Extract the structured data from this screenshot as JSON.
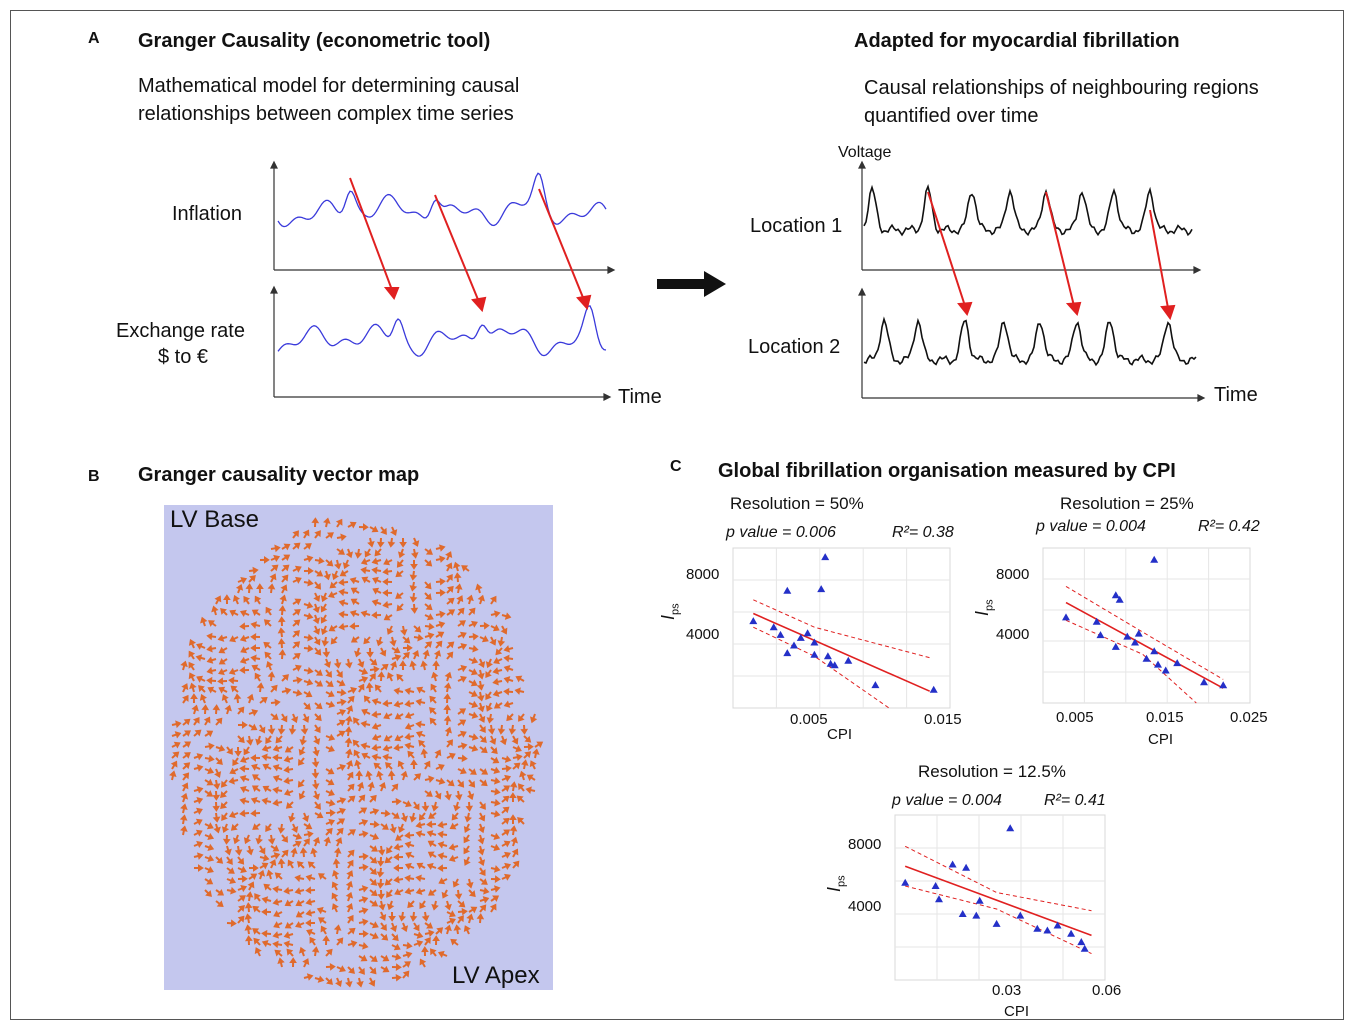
{
  "panel_a": {
    "label": "A",
    "left_title": "Granger Causality (econometric tool)",
    "left_desc": "Mathematical model for determining causal relationships between complex time series",
    "signal_1": "Inflation",
    "signal_2_line1": "Exchange rate",
    "signal_2_line2": "$ to €",
    "x_axis": "Time",
    "right_title": "Adapted for myocardial fibrillation",
    "right_desc": "Causal relationships of neighbouring regions quantified over time",
    "y_axis": "Voltage",
    "location_1": "Location 1",
    "location_2": "Location 2",
    "colors": {
      "econ_signal": "#3a3adb",
      "ecg_signal": "#111111",
      "causal_arrow": "#e02020"
    }
  },
  "panel_b": {
    "label": "B",
    "title": "Granger causality vector map",
    "top_label": "LV Base",
    "bottom_label": "LV Apex",
    "colors": {
      "background": "#c4c7ee",
      "vectors": "#e06a2c"
    }
  },
  "panel_c": {
    "label": "C",
    "title": "Global fibrillation organisation measured by CPI",
    "colors": {
      "points": "#2430c8",
      "fit": "#e02020"
    }
  },
  "chart_data": [
    {
      "type": "scatter",
      "title": "Resolution = 50%",
      "p_value": "p value = 0.006",
      "r2": "R²= 0.38",
      "xlabel": "CPI",
      "ylabel": "I",
      "ylabel_sub": "ps",
      "xticks": [
        "0.005",
        "0.015"
      ],
      "yticks": [
        "8000",
        "4000"
      ],
      "xlim": [
        0,
        0.016
      ],
      "ylim": [
        0,
        10500
      ],
      "points": [
        [
          0.0015,
          5700
        ],
        [
          0.003,
          5300
        ],
        [
          0.0035,
          4800
        ],
        [
          0.004,
          7700
        ],
        [
          0.0055,
          4900
        ],
        [
          0.004,
          3600
        ],
        [
          0.0045,
          4100
        ],
        [
          0.005,
          4600
        ],
        [
          0.006,
          4300
        ],
        [
          0.006,
          3500
        ],
        [
          0.007,
          3400
        ],
        [
          0.0072,
          2900
        ],
        [
          0.0075,
          2800
        ],
        [
          0.0085,
          3100
        ],
        [
          0.0068,
          9900
        ],
        [
          0.0065,
          7800
        ],
        [
          0.0105,
          1500
        ],
        [
          0.0148,
          1200
        ]
      ],
      "fit": [
        [
          0.0015,
          6200
        ],
        [
          0.0145,
          1100
        ]
      ],
      "ci_upper": [
        [
          0.0015,
          7100
        ],
        [
          0.006,
          5300
        ],
        [
          0.0145,
          3300
        ]
      ],
      "ci_lower": [
        [
          0.0015,
          5300
        ],
        [
          0.006,
          3400
        ],
        [
          0.0115,
          0
        ]
      ]
    },
    {
      "type": "scatter",
      "title": "Resolution = 25%",
      "p_value": "p value = 0.004",
      "r2": "R²= 0.42",
      "xlabel": "CPI",
      "ylabel": "I",
      "ylabel_sub": "ps",
      "xticks": [
        "0.005",
        "0.015",
        "0.025"
      ],
      "yticks": [
        "8000",
        "4000"
      ],
      "xlim": [
        0,
        0.027
      ],
      "ylim": [
        0,
        10500
      ],
      "points": [
        [
          0.003,
          5800
        ],
        [
          0.007,
          5500
        ],
        [
          0.0075,
          4600
        ],
        [
          0.0095,
          7300
        ],
        [
          0.01,
          7000
        ],
        [
          0.0095,
          3800
        ],
        [
          0.011,
          4500
        ],
        [
          0.012,
          4100
        ],
        [
          0.0125,
          4700
        ],
        [
          0.0135,
          3000
        ],
        [
          0.0145,
          3500
        ],
        [
          0.015,
          2600
        ],
        [
          0.016,
          2200
        ],
        [
          0.0175,
          2700
        ],
        [
          0.021,
          1400
        ],
        [
          0.0235,
          1200
        ],
        [
          0.0145,
          9700
        ]
      ],
      "fit": [
        [
          0.003,
          6800
        ],
        [
          0.0235,
          1000
        ]
      ],
      "ci_upper": [
        [
          0.003,
          7900
        ],
        [
          0.013,
          4800
        ],
        [
          0.0235,
          1600
        ]
      ],
      "ci_lower": [
        [
          0.003,
          5600
        ],
        [
          0.013,
          3300
        ],
        [
          0.02,
          0
        ]
      ]
    },
    {
      "type": "scatter",
      "title": "Resolution = 12.5%",
      "p_value": "p value = 0.004",
      "r2": "R²= 0.41",
      "xlabel": "CPI",
      "ylabel": "I",
      "ylabel_sub": "ps",
      "xticks": [
        "0.03",
        "0.06"
      ],
      "yticks": [
        "8000",
        "4000"
      ],
      "xlim": [
        0,
        0.062
      ],
      "ylim": [
        0,
        10000
      ],
      "points": [
        [
          0.003,
          5900
        ],
        [
          0.012,
          5700
        ],
        [
          0.013,
          4900
        ],
        [
          0.017,
          7000
        ],
        [
          0.021,
          6800
        ],
        [
          0.02,
          4000
        ],
        [
          0.024,
          3900
        ],
        [
          0.025,
          4800
        ],
        [
          0.03,
          3400
        ],
        [
          0.037,
          3900
        ],
        [
          0.042,
          3100
        ],
        [
          0.045,
          3000
        ],
        [
          0.048,
          3300
        ],
        [
          0.052,
          2800
        ],
        [
          0.055,
          2300
        ],
        [
          0.056,
          1900
        ],
        [
          0.034,
          9200
        ]
      ],
      "fit": [
        [
          0.003,
          6900
        ],
        [
          0.058,
          2700
        ]
      ],
      "ci_upper": [
        [
          0.003,
          8100
        ],
        [
          0.03,
          5300
        ],
        [
          0.058,
          4200
        ]
      ],
      "ci_lower": [
        [
          0.003,
          5700
        ],
        [
          0.03,
          4300
        ],
        [
          0.058,
          1600
        ]
      ]
    }
  ]
}
